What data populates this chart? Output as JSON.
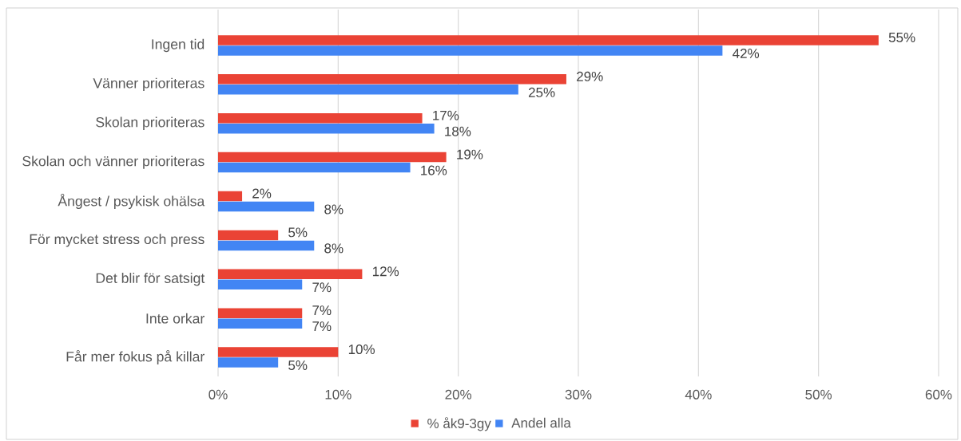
{
  "chart_data": {
    "type": "bar",
    "orientation": "horizontal",
    "categories": [
      "Ingen tid",
      "Vänner prioriteras",
      "Skolan  prioriteras",
      "Skolan och vänner prioriteras",
      "Ångest / psykisk ohälsa",
      "För mycket stress och press",
      "Det blir för satsigt",
      "Inte orkar",
      "Får mer fokus på killar"
    ],
    "series": [
      {
        "name": "% åk9-3gy",
        "color": "#ea4335",
        "values": [
          55,
          29,
          17,
          19,
          2,
          5,
          12,
          7,
          10
        ],
        "value_labels": [
          "55%",
          "29%",
          "17%",
          "19%",
          "2%",
          "5%",
          "12%",
          "7%",
          "10%"
        ]
      },
      {
        "name": "Andel alla",
        "color": "#4285f4",
        "values": [
          42,
          25,
          18,
          16,
          8,
          8,
          7,
          7,
          5
        ],
        "value_labels": [
          "42%",
          "25%",
          "18%",
          "16%",
          "8%",
          "8%",
          "7%",
          "7%",
          "5%"
        ]
      }
    ],
    "xlim": [
      0,
      60
    ],
    "xticks": [
      {
        "value": 0,
        "label": "0%"
      },
      {
        "value": 10,
        "label": "10%"
      },
      {
        "value": 20,
        "label": "20%"
      },
      {
        "value": 30,
        "label": "30%"
      },
      {
        "value": 40,
        "label": "40%"
      },
      {
        "value": 50,
        "label": "50%"
      },
      {
        "value": 60,
        "label": "60%"
      }
    ],
    "grid": "x",
    "legend": "bottom"
  }
}
